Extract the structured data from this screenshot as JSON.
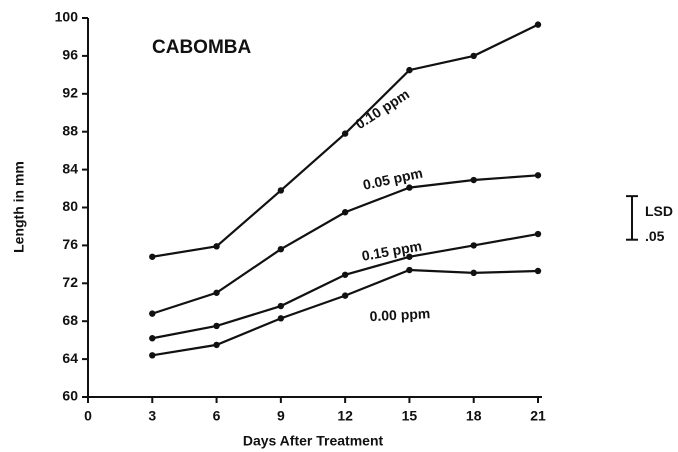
{
  "chart_data": {
    "type": "line",
    "title": "CABOMBA",
    "x_label": "Days After Treatment",
    "y_label": "Length in mm",
    "x": [
      3,
      6,
      9,
      12,
      15,
      18,
      21
    ],
    "series": [
      {
        "name": "0.10 ppm",
        "color": "#111111",
        "values": [
          74.8,
          75.9,
          81.8,
          87.8,
          94.5,
          96.0,
          99.3
        ]
      },
      {
        "name": "0.05 ppm",
        "color": "#111111",
        "values": [
          68.8,
          71.0,
          75.6,
          79.5,
          82.1,
          82.9,
          83.4
        ]
      },
      {
        "name": "0.15 ppm",
        "color": "#111111",
        "values": [
          66.2,
          67.5,
          69.6,
          72.9,
          74.8,
          76.0,
          77.2
        ]
      },
      {
        "name": "0.00 ppm",
        "color": "#111111",
        "values": [
          64.4,
          65.5,
          68.3,
          70.7,
          73.4,
          73.1,
          73.3
        ]
      }
    ],
    "lsd": {
      "label": "LSD",
      "sublabel": ".05",
      "top": 81.2,
      "bottom": 76.6
    },
    "xlim": [
      0,
      21
    ],
    "xticks": [
      0,
      3,
      6,
      9,
      12,
      15,
      18,
      21
    ],
    "ylim": [
      60,
      100
    ],
    "yticks": [
      60,
      64,
      68,
      72,
      76,
      80,
      84,
      88,
      92,
      96,
      100
    ],
    "grid": false
  }
}
